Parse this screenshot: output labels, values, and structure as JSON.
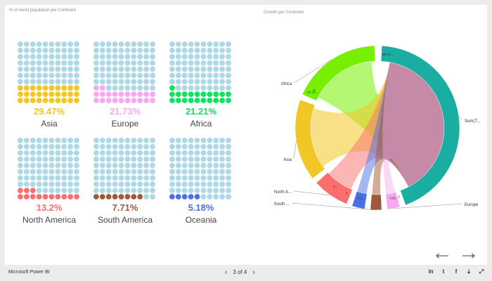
{
  "page": {
    "left_title": "% of world population per Continent",
    "right_title": "Growth per Continent",
    "next_arrow": "→",
    "prev_arrow": "←"
  },
  "chart_data": [
    {
      "type": "waffle",
      "title": "% of world population per Continent",
      "grid_empty_color": "#add8e6",
      "items": [
        {
          "name": "Asia",
          "value": 29.47,
          "label": "29.47%",
          "color": "#f2c624",
          "cells": 30
        },
        {
          "name": "Europe",
          "value": 21.73,
          "label": "21.73%",
          "color": "#f7a8f0",
          "cells": 22
        },
        {
          "name": "Africa",
          "value": 21.21,
          "label": "21.21%",
          "color": "#0ee35c",
          "cells": 21
        },
        {
          "name": "North America",
          "value": 13.2,
          "label": "13.2%",
          "color": "#fa6e6e",
          "cells": 13
        },
        {
          "name": "South America",
          "value": 7.71,
          "label": "7.71%",
          "color": "#a05a3a",
          "cells": 8
        },
        {
          "name": "Oceania",
          "value": 5.18,
          "label": "5.18%",
          "color": "#4b6fe6",
          "cells": 5
        }
      ]
    },
    {
      "type": "chord",
      "title": "Growth per Continent",
      "groups": [
        {
          "name": "Sum(T...",
          "value": 100,
          "color": "#1aaea3",
          "side": "right"
        },
        {
          "name": "Europe",
          "value": 21.73,
          "color": "#f7a8f0",
          "side": "right"
        },
        {
          "name": "South ...",
          "value": 7.71,
          "color": "#a05a3a",
          "side": "left"
        },
        {
          "name": "",
          "value": 5.18,
          "color": "#4b6fe6",
          "side": "left"
        },
        {
          "name": "North A...",
          "value": 13.2,
          "color": "#fa6e6e",
          "side": "left"
        },
        {
          "name": "Asia",
          "value": 29.47,
          "color": "#f2c624",
          "side": "left"
        },
        {
          "name": "Africa",
          "value": 21.21,
          "color": "#76f000",
          "side": "left"
        }
      ],
      "arc_labels": [
        "99.72...",
        "87.17...",
        "0",
        "8...",
        "0",
        "0.0...",
        "0",
        "0.85",
        "0"
      ]
    }
  ],
  "footer": {
    "brand": "Microsoft Power BI",
    "pager": "3 of 4",
    "prev": "‹",
    "next": "›",
    "icons": [
      "linkedin-icon",
      "twitter-icon",
      "facebook-icon",
      "download-icon",
      "fullscreen-icon"
    ],
    "icon_glyphs": [
      "in",
      "t",
      "f",
      "⤓",
      "⤢"
    ]
  }
}
